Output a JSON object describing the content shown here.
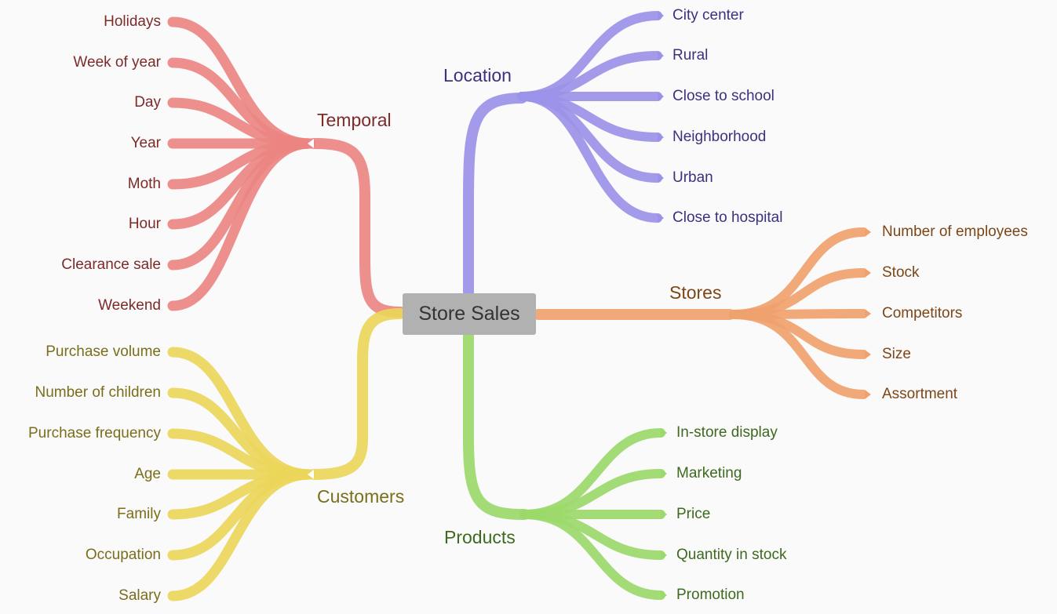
{
  "center": {
    "label": "Store Sales",
    "color": "#b1b1b1"
  },
  "branches": {
    "temporal": {
      "title": "Temporal",
      "color": "#ec8682",
      "text_color": "#7c2b29",
      "children": [
        "Holidays",
        "Week of year",
        "Day",
        "Year",
        "Moth",
        "Hour",
        "Clearance sale",
        "Weekend"
      ]
    },
    "customers": {
      "title": "Customers",
      "color": "#ebd65a",
      "text_color": "#7a6d1b",
      "children": [
        "Purchase volume",
        "Number of children",
        "Purchase frequency",
        "Age",
        "Family",
        "Occupation",
        "Salary"
      ]
    },
    "location": {
      "title": "Location",
      "color": "#9b92e8",
      "text_color": "#3a327e",
      "children": [
        "City center",
        "Rural",
        "Close to school",
        "Neighborhood",
        "Urban",
        "Close to hospital"
      ]
    },
    "stores": {
      "title": "Stores",
      "color": "#f0a26e",
      "text_color": "#7c4617",
      "children": [
        "Number of employees",
        "Stock",
        "Competitors",
        "Size",
        "Assortment"
      ]
    },
    "products": {
      "title": "Products",
      "color": "#9bd96b",
      "text_color": "#3d6a1f",
      "children": [
        "In-store display",
        "Marketing",
        "Price",
        "Quantity in stock",
        "Promotion"
      ]
    }
  }
}
